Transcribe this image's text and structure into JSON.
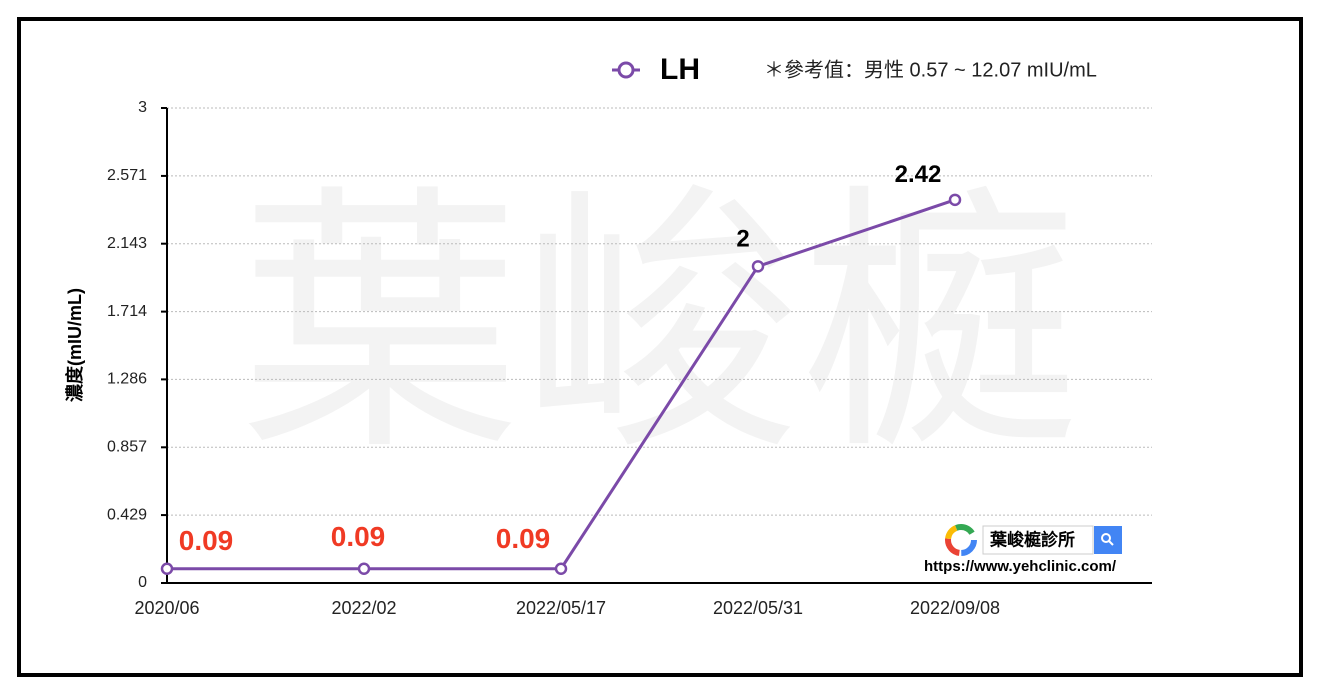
{
  "chart_data": {
    "type": "line",
    "legend_label": "LH",
    "annotation": "＊參考值：男性 0.57 ~ 12.07 mIU/mL",
    "y_label": "濃度(mIU/mL)",
    "watermark": "葉峻榳",
    "logo_text": "葉峻榳診所",
    "url": "https://www.yehclinic.com/",
    "categories": [
      "2020/06",
      "2022/02",
      "2022/05/17",
      "2022/05/31",
      "2022/09/08"
    ],
    "series": [
      {
        "name": "LH",
        "color": "#7b4aa8",
        "values": [
          0.09,
          0.09,
          0.09,
          2,
          2.42
        ],
        "label_colors": [
          "#f03a24",
          "#f03a24",
          "#f03a24",
          "#000000",
          "#000000"
        ]
      }
    ],
    "ylim": [
      0,
      3
    ],
    "yticks": [
      0,
      0.429,
      0.857,
      1.286,
      1.714,
      2.143,
      2.571,
      3
    ],
    "grid": true
  }
}
